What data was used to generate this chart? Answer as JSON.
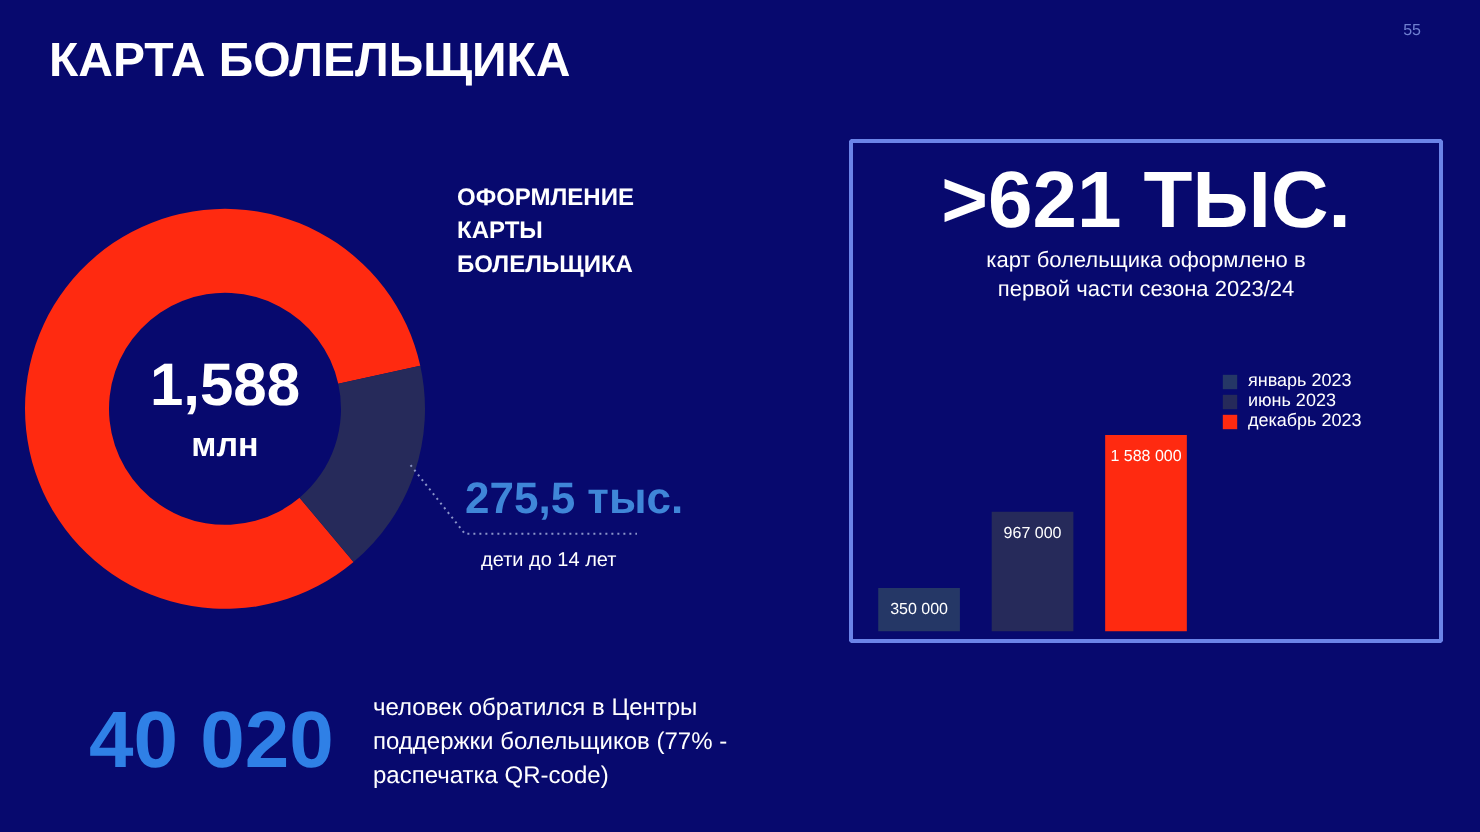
{
  "chart_data": [
    {
      "type": "other",
      "title": "КАРТА БОЛЕЛЬЩИКА",
      "annotations": [
        "55"
      ]
    },
    {
      "type": "donut",
      "title": "ОФОРМЛЕНИЕ КАРТЫ БОЛЕЛЬЩИКА",
      "categories": [
        null,
        "дети до 14 лет"
      ],
      "values": [
        1312.5,
        275.5
      ],
      "colors": [
        "#ff2a10",
        "#262a5a"
      ],
      "value_labels": [
        null,
        "275,5 тыс."
      ],
      "annotations": [
        "1,588 млн"
      ]
    },
    {
      "type": "bar",
      "title": ">621 ТЫС.",
      "subtitle": "карт болельщика оформлено в первой части сезона 2023/24",
      "categories": [
        null,
        null,
        null
      ],
      "series": [
        {
          "name": "январь 2023",
          "color": "#253766",
          "values": [
            350000,
            null,
            null
          ],
          "value_labels": [
            "350 000",
            null,
            null
          ]
        },
        {
          "name": "июнь 2023",
          "color": "#262a5a",
          "values": [
            null,
            967000,
            null
          ],
          "value_labels": [
            null,
            "967 000",
            null
          ]
        },
        {
          "name": "декабрь 2023",
          "color": "#ff2a10",
          "values": [
            null,
            null,
            1588000
          ],
          "value_labels": [
            null,
            null,
            "1 588 000"
          ]
        }
      ],
      "stacked": true,
      "legend": "right",
      "tick_labels": false
    },
    {
      "type": "other",
      "annotations": [
        "40 020",
        "человек обратился в Центры поддержки болельщиков (77% - распечатка QR-code)"
      ]
    }
  ]
}
